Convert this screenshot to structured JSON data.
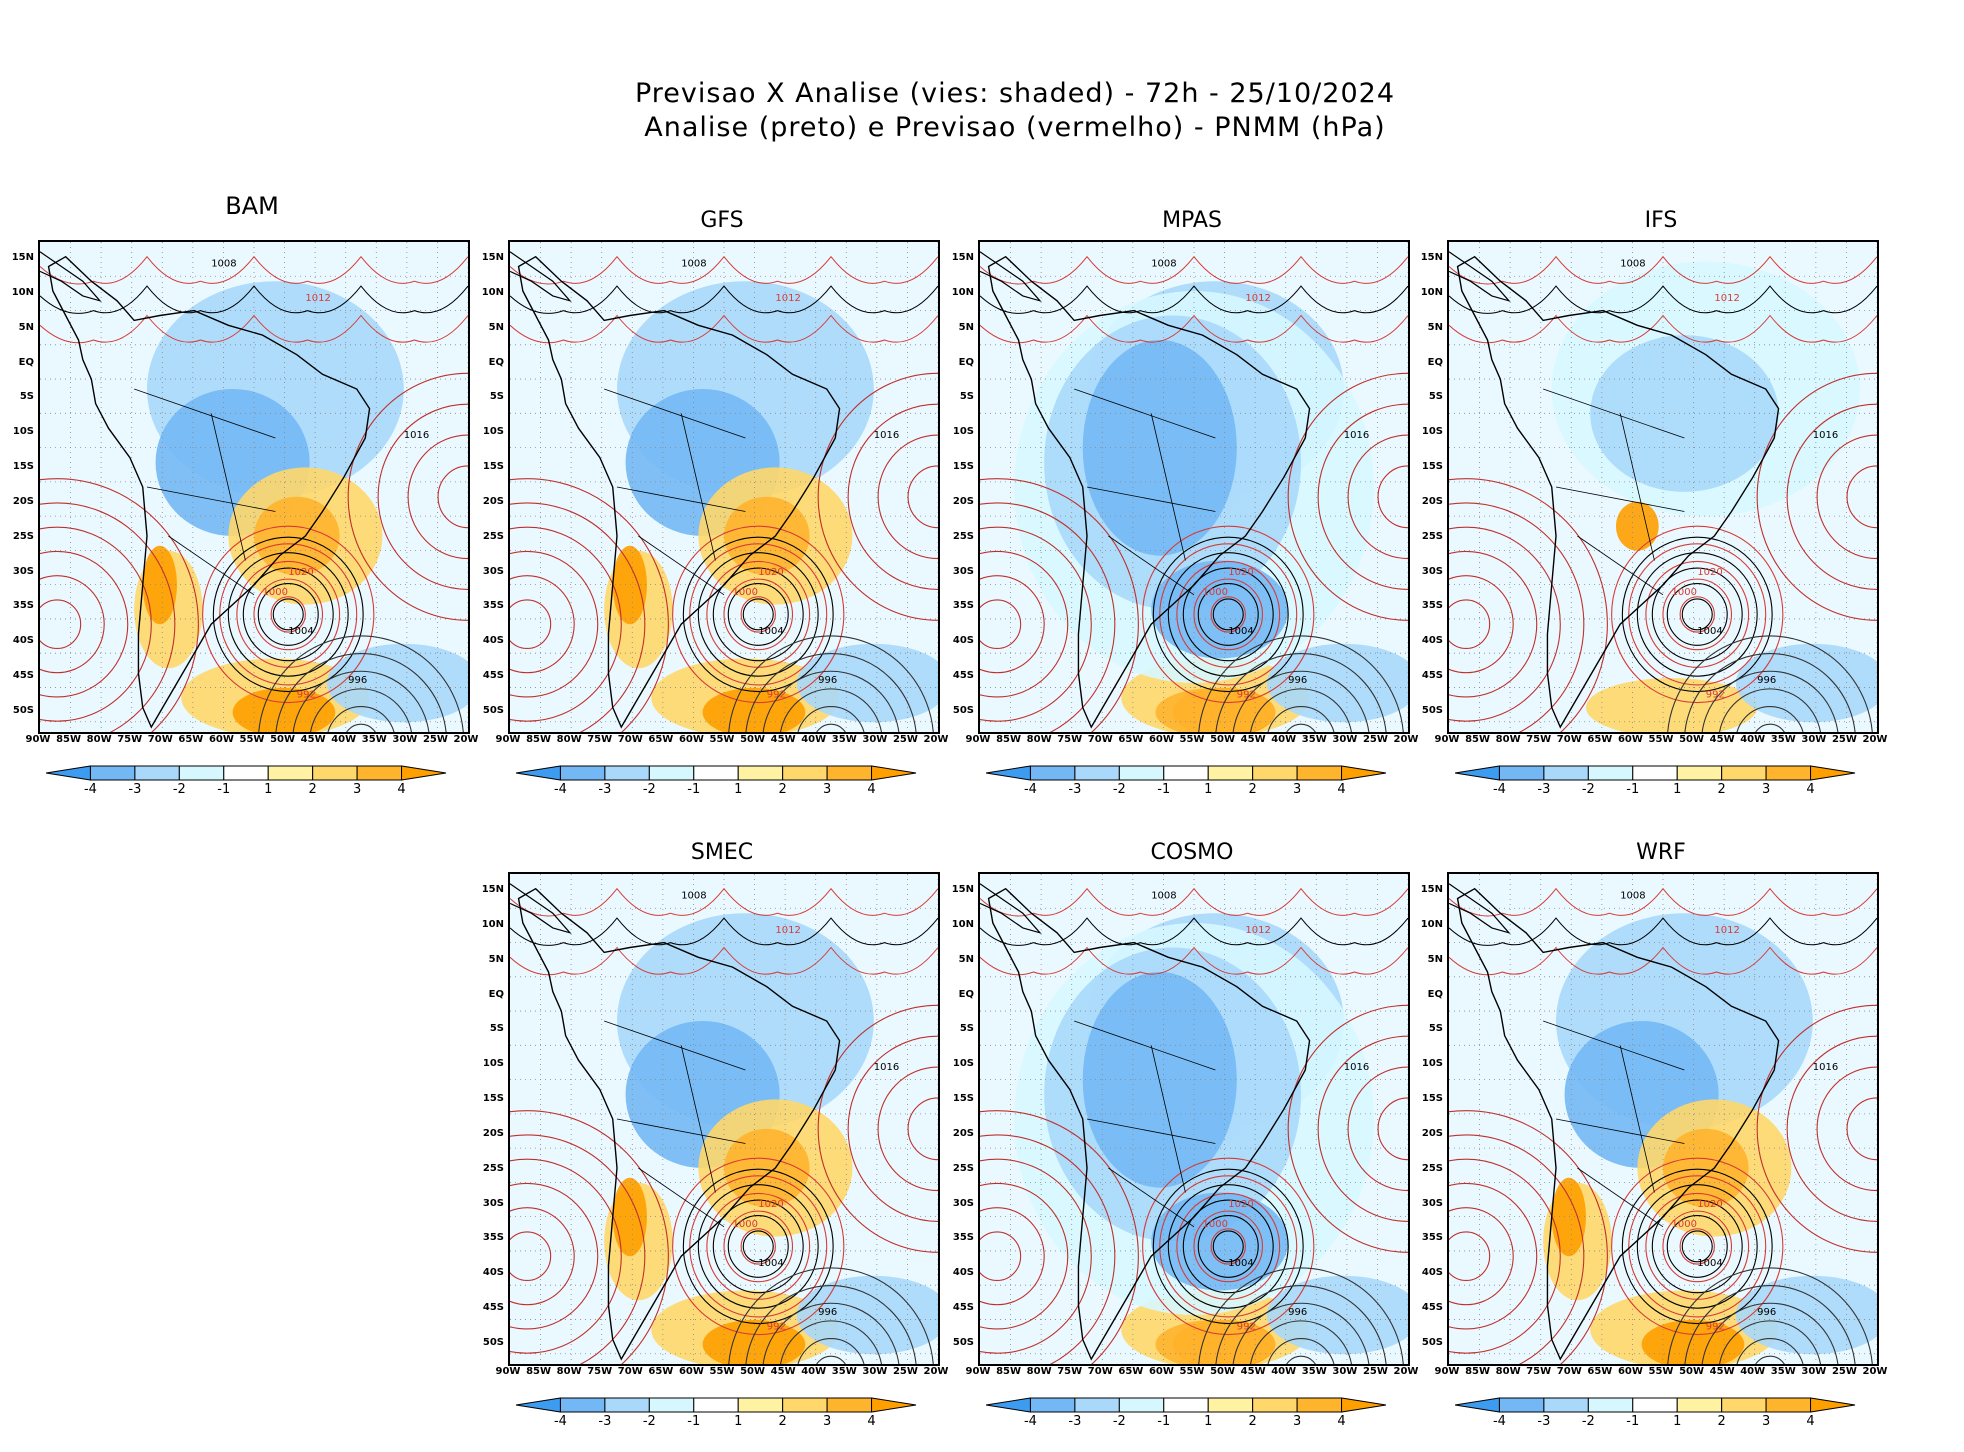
{
  "header": {
    "line1": "Previsao X Analise (vies: shaded) - 72h - 25/10/2024",
    "line2": "Analise (preto) e Previsao (vermelho) - PNMM (hPa)"
  },
  "lat_labels": [
    "15N",
    "10N",
    "5N",
    "EQ",
    "5S",
    "10S",
    "15S",
    "20S",
    "25S",
    "30S",
    "35S",
    "40S",
    "45S",
    "50S"
  ],
  "lon_labels": [
    "90W",
    "85W",
    "80W",
    "75W",
    "70W",
    "65W",
    "60W",
    "55W",
    "50W",
    "45W",
    "40W",
    "35W",
    "30W",
    "25W",
    "20W"
  ],
  "colorbar": {
    "labels": [
      "-4",
      "-3",
      "-2",
      "-1",
      "1",
      "2",
      "3",
      "4"
    ],
    "colors": [
      "#3d9bf0",
      "#73b8f5",
      "#a9d8fb",
      "#d7f7ff",
      "#ffffff",
      "#fff3a3",
      "#ffd76a",
      "#ffb42e",
      "#ff9f00"
    ]
  },
  "panels": [
    {
      "name": "BAM",
      "bias": "mixed"
    },
    {
      "name": "GFS",
      "bias": "mixed"
    },
    {
      "name": "MPAS",
      "bias": "negative"
    },
    {
      "name": "IFS",
      "bias": "light"
    },
    {
      "name": "SMEC",
      "bias": "mixed"
    },
    {
      "name": "COSMO",
      "bias": "negative"
    },
    {
      "name": "WRF",
      "bias": "mixed"
    }
  ],
  "isobar_labels": [
    "1008",
    "1012",
    "1016",
    "1020",
    "1004",
    "1000",
    "996",
    "992"
  ]
}
